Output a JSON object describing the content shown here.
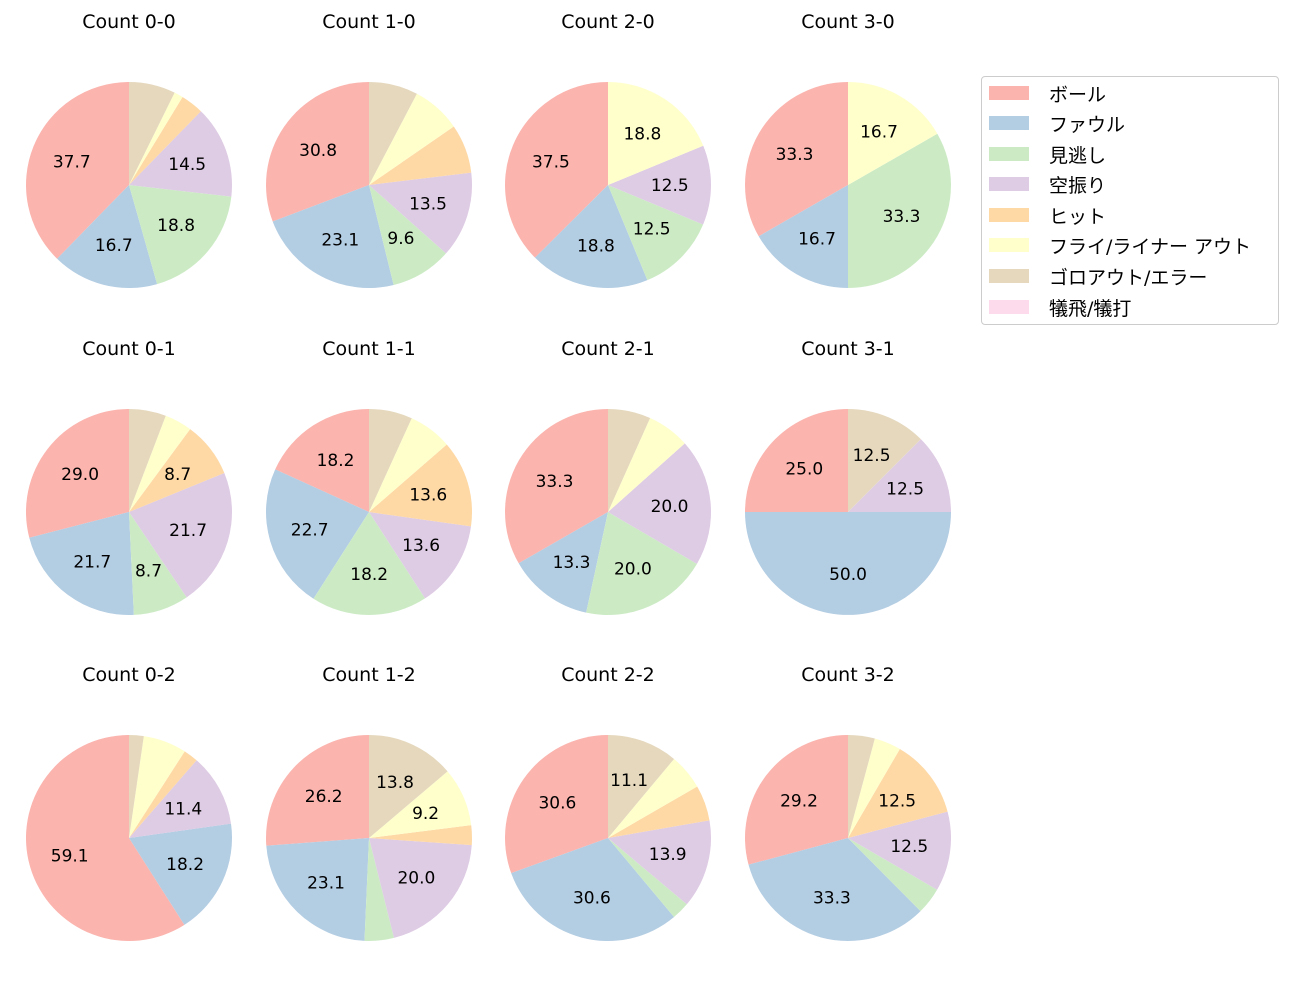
{
  "legend": {
    "title": "",
    "placement": "upper-right",
    "items": [
      {
        "label": "ボール",
        "color": "#fbb4ae"
      },
      {
        "label": "ファウル",
        "color": "#b3cde3"
      },
      {
        "label": "見逃し",
        "color": "#ccebc5"
      },
      {
        "label": "空振り",
        "color": "#decbe4"
      },
      {
        "label": "ヒット",
        "color": "#fed9a6"
      },
      {
        "label": "フライ/ライナー アウト",
        "color": "#ffffcc"
      },
      {
        "label": "ゴロアウト/エラー",
        "color": "#e5d8bd"
      },
      {
        "label": "犠飛/犠打",
        "color": "#fddaec"
      }
    ]
  },
  "chart_data": [
    {
      "type": "pie",
      "title": "Count 0-0",
      "labels": [
        "ボール",
        "ファウル",
        "見逃し",
        "空振り",
        "ヒット",
        "フライ/ライナー アウト",
        "ゴロアウト/エラー",
        "犠飛/犠打"
      ],
      "values": [
        37.7,
        16.7,
        18.8,
        14.5,
        3.6,
        1.4,
        7.3,
        0
      ],
      "shown_labels": [
        "37.7",
        "16.7",
        "18.8",
        "14.5",
        "",
        "",
        "",
        ""
      ]
    },
    {
      "type": "pie",
      "title": "Count 1-0",
      "labels": [
        "ボール",
        "ファウル",
        "見逃し",
        "空振り",
        "ヒット",
        "フライ/ライナー アウト",
        "ゴロアウト/エラー",
        "犠飛/犠打"
      ],
      "values": [
        30.8,
        23.1,
        9.6,
        13.5,
        7.7,
        7.7,
        7.7,
        0
      ],
      "shown_labels": [
        "30.8",
        "23.1",
        "9.6",
        "13.5",
        "",
        "",
        "",
        ""
      ]
    },
    {
      "type": "pie",
      "title": "Count 2-0",
      "labels": [
        "ボール",
        "ファウル",
        "見逃し",
        "空振り",
        "ヒット",
        "フライ/ライナー アウト",
        "ゴロアウト/エラー",
        "犠飛/犠打"
      ],
      "values": [
        37.5,
        18.8,
        12.5,
        12.5,
        0,
        18.8,
        0,
        0
      ],
      "shown_labels": [
        "37.5",
        "18.8",
        "12.5",
        "12.5",
        "",
        "18.8",
        "",
        ""
      ]
    },
    {
      "type": "pie",
      "title": "Count 3-0",
      "labels": [
        "ボール",
        "ファウル",
        "見逃し",
        "空振り",
        "ヒット",
        "フライ/ライナー アウト",
        "ゴロアウト/エラー",
        "犠飛/犠打"
      ],
      "values": [
        33.3,
        16.7,
        33.3,
        0,
        0,
        16.7,
        0,
        0
      ],
      "shown_labels": [
        "33.3",
        "16.7",
        "33.3",
        "",
        "",
        "16.7",
        "",
        ""
      ]
    },
    {
      "type": "pie",
      "title": "Count 0-1",
      "labels": [
        "ボール",
        "ファウル",
        "見逃し",
        "空振り",
        "ヒット",
        "フライ/ライナー アウト",
        "ゴロアウト/エラー",
        "犠飛/犠打"
      ],
      "values": [
        29.0,
        21.7,
        8.7,
        21.7,
        8.7,
        4.3,
        5.8,
        0
      ],
      "shown_labels": [
        "29.0",
        "21.7",
        "8.7",
        "21.7",
        "8.7",
        "",
        "",
        ""
      ]
    },
    {
      "type": "pie",
      "title": "Count 1-1",
      "labels": [
        "ボール",
        "ファウル",
        "見逃し",
        "空振り",
        "ヒット",
        "フライ/ライナー アウト",
        "ゴロアウト/エラー",
        "犠飛/犠打"
      ],
      "values": [
        18.2,
        22.7,
        18.2,
        13.6,
        13.6,
        6.8,
        6.8,
        0
      ],
      "shown_labels": [
        "18.2",
        "22.7",
        "18.2",
        "13.6",
        "13.6",
        "",
        "",
        ""
      ]
    },
    {
      "type": "pie",
      "title": "Count 2-1",
      "labels": [
        "ボール",
        "ファウル",
        "見逃し",
        "空振り",
        "ヒット",
        "フライ/ライナー アウト",
        "ゴロアウト/エラー",
        "犠飛/犠打"
      ],
      "values": [
        33.3,
        13.3,
        20.0,
        20.0,
        0,
        6.7,
        6.7,
        0
      ],
      "shown_labels": [
        "33.3",
        "13.3",
        "20.0",
        "20.0",
        "",
        "",
        "",
        ""
      ]
    },
    {
      "type": "pie",
      "title": "Count 3-1",
      "labels": [
        "ボール",
        "ファウル",
        "見逃し",
        "空振り",
        "ヒット",
        "フライ/ライナー アウト",
        "ゴロアウト/エラー",
        "犠飛/犠打"
      ],
      "values": [
        25.0,
        50.0,
        0,
        12.5,
        0,
        0,
        12.5,
        0
      ],
      "shown_labels": [
        "25.0",
        "50.0",
        "",
        "12.5",
        "",
        "",
        "12.5",
        ""
      ]
    },
    {
      "type": "pie",
      "title": "Count 0-2",
      "labels": [
        "ボール",
        "ファウル",
        "見逃し",
        "空振り",
        "ヒット",
        "フライ/ライナー アウト",
        "ゴロアウト/エラー",
        "犠飛/犠打"
      ],
      "values": [
        59.1,
        18.2,
        0,
        11.4,
        2.3,
        6.8,
        2.3,
        0
      ],
      "shown_labels": [
        "59.1",
        "18.2",
        "",
        "11.4",
        "",
        "",
        "",
        ""
      ]
    },
    {
      "type": "pie",
      "title": "Count 1-2",
      "labels": [
        "ボール",
        "ファウル",
        "見逃し",
        "空振り",
        "ヒット",
        "フライ/ライナー アウト",
        "ゴロアウト/エラー",
        "犠飛/犠打"
      ],
      "values": [
        26.2,
        23.1,
        4.6,
        20.0,
        3.1,
        9.2,
        13.8,
        0
      ],
      "shown_labels": [
        "26.2",
        "23.1",
        "",
        "20.0",
        "",
        "9.2",
        "13.8",
        ""
      ]
    },
    {
      "type": "pie",
      "title": "Count 2-2",
      "labels": [
        "ボール",
        "ファウル",
        "見逃し",
        "空振り",
        "ヒット",
        "フライ/ライナー アウト",
        "ゴロアウト/エラー",
        "犠飛/犠打"
      ],
      "values": [
        30.6,
        30.6,
        2.8,
        13.9,
        5.6,
        5.6,
        11.1,
        0
      ],
      "shown_labels": [
        "30.6",
        "30.6",
        "",
        "13.9",
        "",
        "",
        "11.1",
        ""
      ]
    },
    {
      "type": "pie",
      "title": "Count 3-2",
      "labels": [
        "ボール",
        "ファウル",
        "見逃し",
        "空振り",
        "ヒット",
        "フライ/ライナー アウト",
        "ゴロアウト/エラー",
        "犠飛/犠打"
      ],
      "values": [
        29.2,
        33.3,
        4.2,
        12.5,
        12.5,
        4.2,
        4.2,
        0
      ],
      "shown_labels": [
        "29.2",
        "33.3",
        "",
        "12.5",
        "12.5",
        "",
        "",
        ""
      ]
    }
  ]
}
